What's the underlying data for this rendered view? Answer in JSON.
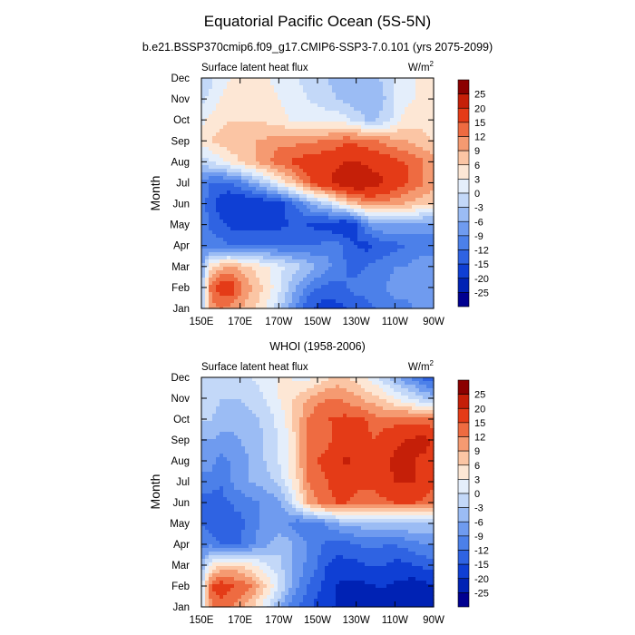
{
  "figure": {
    "title": "Equatorial Pacific Ocean (5S-5N)"
  },
  "chart_data": [
    {
      "type": "heatmap",
      "title": "b.e21.BSSP370cmip6.f09_g17.CMIP6-SSP3-7.0.101 (yrs 2075-2099)",
      "left_label": "Surface latent heat flux",
      "units_base": "W/m",
      "units_sup": "2",
      "ylabel": "Month",
      "x_ticks": [
        "150E",
        "170E",
        "170W",
        "150W",
        "130W",
        "110W",
        "90W"
      ],
      "y_ticks": [
        "Jan",
        "Feb",
        "Mar",
        "Apr",
        "May",
        "Jun",
        "Jul",
        "Aug",
        "Sep",
        "Oct",
        "Nov",
        "Dec"
      ],
      "levels": [
        -25,
        -20,
        -15,
        -12,
        -9,
        -6,
        -3,
        0,
        3,
        6,
        9,
        12,
        15,
        20,
        25
      ],
      "x_lon": [
        150,
        155,
        160,
        165,
        170,
        175,
        180,
        185,
        190,
        195,
        200,
        205,
        210,
        215,
        220,
        225,
        230,
        235,
        240,
        245,
        250,
        255,
        260,
        265,
        270
      ],
      "z": [
        [
          -6,
          10,
          12,
          11,
          9,
          7,
          5,
          2,
          -2,
          -6,
          -10,
          -14,
          -16,
          -17,
          -16,
          -15,
          -14,
          -13,
          -12,
          -11,
          -10,
          -10,
          -9,
          -9,
          -8
        ],
        [
          -5,
          14,
          17,
          18,
          13,
          10,
          7,
          4,
          1,
          -3,
          -7,
          -10,
          -12,
          -13,
          -13,
          -12,
          -11,
          -11,
          -10,
          -9,
          -8,
          -8,
          -7,
          -7,
          -7
        ],
        [
          -8,
          6,
          8,
          9,
          8,
          6,
          4,
          3,
          1,
          -1,
          -2,
          -4,
          -6,
          -8,
          -10,
          -12,
          -13,
          -12,
          -11,
          -10,
          -9,
          -9,
          -8,
          -8,
          -8
        ],
        [
          -10,
          -10,
          -11,
          -12,
          -13,
          -13,
          -12,
          -12,
          -12,
          -12,
          -12,
          -12,
          -12,
          -10,
          -11,
          -13,
          -15,
          -16,
          -15,
          -14,
          -13,
          -12,
          -11,
          -10,
          -10
        ],
        [
          -10,
          -13,
          -14,
          -16,
          -16,
          -16,
          -16,
          -16,
          -16,
          -15,
          -15,
          -15,
          -16,
          -17,
          -18,
          -19,
          -16,
          -10,
          -6,
          -6,
          -6,
          -7,
          -7,
          -8,
          -8
        ],
        [
          -10,
          -14,
          -17,
          -19,
          -19,
          -19,
          -18,
          -18,
          -17,
          -14,
          -11,
          -7,
          -4,
          -2,
          2,
          5,
          8,
          10,
          11,
          11,
          10,
          9,
          8,
          7,
          6
        ],
        [
          -10,
          -12,
          -13,
          -12,
          -10,
          -7,
          -4,
          -1,
          3,
          6,
          10,
          14,
          17,
          19,
          22,
          24,
          25,
          24,
          22,
          20,
          18,
          16,
          14,
          12,
          10
        ],
        [
          -2,
          0,
          2,
          4,
          6,
          8,
          10,
          12,
          14,
          15,
          16,
          17,
          17,
          18,
          19,
          20,
          20,
          19,
          18,
          17,
          16,
          15,
          14,
          12,
          10
        ],
        [
          4,
          6,
          7,
          8,
          8,
          9,
          9,
          10,
          11,
          11,
          11,
          11,
          12,
          12,
          13,
          14,
          14,
          13,
          12,
          11,
          10,
          9,
          8,
          7,
          6
        ],
        [
          2,
          4,
          5,
          6,
          6,
          6,
          6,
          5,
          4,
          3,
          2,
          2,
          2,
          2,
          2,
          1,
          -1,
          -3,
          -3,
          -2,
          1,
          4,
          5,
          5,
          4
        ],
        [
          -1,
          1,
          3,
          4,
          5,
          5,
          5,
          4,
          3,
          2,
          1,
          0,
          -1,
          -2,
          -3,
          -4,
          -5,
          -6,
          -5,
          -3,
          0,
          2,
          3,
          3,
          3
        ],
        [
          -3,
          -1,
          2,
          3,
          4,
          4,
          4,
          3,
          2,
          1,
          0,
          -1,
          -2,
          -3,
          -4,
          -5,
          -5,
          -5,
          -4,
          -2,
          0,
          2,
          3,
          3,
          3
        ]
      ]
    },
    {
      "type": "heatmap",
      "title": "WHOI (1958-2006)",
      "left_label": "Surface latent heat flux",
      "units_base": "W/m",
      "units_sup": "2",
      "ylabel": "Month",
      "x_ticks": [
        "150E",
        "170E",
        "170W",
        "150W",
        "130W",
        "110W",
        "90W"
      ],
      "y_ticks": [
        "Jan",
        "Feb",
        "Mar",
        "Apr",
        "May",
        "Jun",
        "Jul",
        "Aug",
        "Sep",
        "Oct",
        "Nov",
        "Dec"
      ],
      "levels": [
        -25,
        -20,
        -15,
        -12,
        -9,
        -6,
        -3,
        0,
        3,
        6,
        9,
        12,
        15,
        20,
        25
      ],
      "x_lon": [
        150,
        155,
        160,
        165,
        170,
        175,
        180,
        185,
        190,
        195,
        200,
        205,
        210,
        215,
        220,
        225,
        230,
        235,
        240,
        245,
        250,
        255,
        260,
        265,
        270
      ],
      "z": [
        [
          -2,
          12,
          14,
          12,
          10,
          7,
          3,
          -1,
          -5,
          -9,
          -12,
          -14,
          -16,
          -18,
          -21,
          -23,
          -24,
          -24,
          -24,
          -24,
          -23,
          -22,
          -22,
          -23,
          -22
        ],
        [
          -2,
          15,
          17,
          16,
          14,
          13,
          9,
          5,
          0,
          -5,
          -9,
          -12,
          -14,
          -17,
          -20,
          -22,
          -22,
          -21,
          -20,
          -20,
          -21,
          -22,
          -23,
          -22,
          -20
        ],
        [
          -6,
          3,
          6,
          7,
          6,
          4,
          2,
          0,
          -2,
          -5,
          -7,
          -10,
          -12,
          -15,
          -16,
          -16,
          -16,
          -15,
          -15,
          -15,
          -16,
          -16,
          -15,
          -14,
          -13
        ],
        [
          -10,
          -10,
          -12,
          -12,
          -12,
          -10,
          -8,
          -6,
          -4,
          -5,
          -7,
          -9,
          -11,
          -13,
          -14,
          -13,
          -12,
          -11,
          -11,
          -12,
          -12,
          -11,
          -10,
          -9,
          -9
        ],
        [
          -12,
          -14,
          -14,
          -13,
          -13,
          -11,
          -9,
          -8,
          -8,
          -9,
          -11,
          -11,
          -10,
          -8,
          -6,
          -5,
          -5,
          -4,
          -4,
          -4,
          -3,
          -3,
          -3,
          -3,
          -3
        ],
        [
          -13,
          -14,
          -13,
          -12,
          -11,
          -10,
          -9,
          -8,
          -7,
          -3,
          3,
          9,
          12,
          14,
          15,
          15,
          14,
          13,
          13,
          14,
          15,
          15,
          15,
          14,
          12
        ],
        [
          -10,
          -10,
          -12,
          -9,
          -7,
          -6,
          -5,
          -4,
          -2,
          2,
          6,
          12,
          14,
          15,
          17,
          17,
          16,
          16,
          17,
          19,
          20,
          20,
          20,
          19,
          17
        ],
        [
          -8,
          -8,
          -10,
          -9,
          -7,
          -6,
          -4,
          -2,
          0,
          3,
          8,
          13,
          15,
          16,
          19,
          21,
          19,
          16,
          16,
          19,
          21,
          21,
          20,
          19,
          17
        ],
        [
          -6,
          -6,
          -7,
          -7,
          -6,
          -5,
          -4,
          -2,
          0,
          3,
          8,
          13,
          14,
          14,
          16,
          18,
          18,
          16,
          15,
          17,
          19,
          20,
          21,
          22,
          19
        ],
        [
          -3,
          -3,
          -4,
          -5,
          -5,
          -4,
          -3,
          -1,
          1,
          4,
          8,
          12,
          14,
          15,
          15,
          16,
          15,
          15,
          13,
          13,
          13,
          14,
          13,
          12,
          12
        ],
        [
          -2,
          -2,
          -3,
          -3,
          -3,
          -2,
          -1,
          1,
          3,
          5,
          7,
          9,
          11,
          12,
          12,
          11,
          10,
          8,
          7,
          5,
          3,
          1,
          -1,
          -3,
          -4
        ],
        [
          -1,
          -1,
          -1,
          -1,
          0,
          0,
          1,
          2,
          3,
          3,
          2,
          2,
          3,
          5,
          7,
          6,
          5,
          3,
          1,
          -2,
          -5,
          -8,
          -10,
          -13,
          -15
        ]
      ]
    }
  ],
  "colorbar": {
    "labels": [
      "25",
      "20",
      "15",
      "12",
      "9",
      "6",
      "3",
      "0",
      "-3",
      "-6",
      "-9",
      "-12",
      "-15",
      "-20",
      "-25"
    ],
    "colors": [
      "#000090",
      "#0022b4",
      "#0f3fd4",
      "#2f63e2",
      "#4c80e9",
      "#6f9bef",
      "#9bbcf4",
      "#c3d8f8",
      "#e4eefb",
      "#fde7d5",
      "#fbc5a4",
      "#f59a71",
      "#ee6b41",
      "#e43b17",
      "#c51f08",
      "#8b0000"
    ]
  }
}
